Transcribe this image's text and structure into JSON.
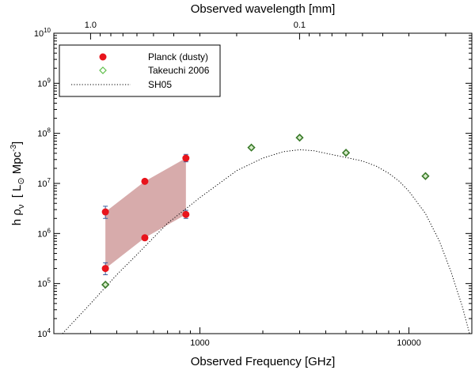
{
  "chart_data": {
    "type": "scatter",
    "xlabel": "Observed Frequency [GHz]",
    "x2label": "Observed wavelength [mm]",
    "ylabel_prefix": "h ρ",
    "ylabel_sub": "ν",
    "ylabel_units_open": "[ L",
    "ylabel_units_sun": "⊙",
    "ylabel_units_mid": " Mpc",
    "ylabel_units_exp": "-3",
    "ylabel_units_close": "]",
    "xscale": "log",
    "yscale": "log",
    "xlim": [
      200,
      20000
    ],
    "ylim": [
      10000,
      10000000000
    ],
    "x_ticks": [
      {
        "value": 1000,
        "label": "1000"
      },
      {
        "value": 10000,
        "label": "10000"
      }
    ],
    "x2_ticks": [
      {
        "value": 1.0,
        "label": "1.0"
      },
      {
        "value": 0.1,
        "label": "0.1"
      }
    ],
    "y_ticks": [
      {
        "value": 10000,
        "base": "10",
        "exp": "4"
      },
      {
        "value": 100000,
        "base": "10",
        "exp": "5"
      },
      {
        "value": 1000000,
        "base": "10",
        "exp": "6"
      },
      {
        "value": 10000000,
        "base": "10",
        "exp": "7"
      },
      {
        "value": 100000000,
        "base": "10",
        "exp": "8"
      },
      {
        "value": 1000000000,
        "base": "10",
        "exp": "9"
      },
      {
        "value": 10000000000,
        "base": "10",
        "exp": "10"
      }
    ],
    "legend": {
      "position": "top-left",
      "entries": [
        {
          "label": "Planck (dusty)",
          "marker": "filled-circle",
          "color": "#e8141c"
        },
        {
          "label": "Takeuchi 2006",
          "marker": "open-diamond",
          "color": "#5fbf4a"
        },
        {
          "label": "SH05",
          "marker": "dotted-line",
          "color": "#000000"
        }
      ]
    },
    "series": [
      {
        "name": "Planck (dusty)",
        "color": "#e8141c",
        "upper": [
          {
            "x": 353,
            "y": 2700000,
            "err_lo": 2000000,
            "err_hi": 3500000
          },
          {
            "x": 545,
            "y": 11000000,
            "err_lo": 10000000,
            "err_hi": 12000000
          },
          {
            "x": 857,
            "y": 32000000,
            "err_lo": 27000000,
            "err_hi": 38000000
          }
        ],
        "lower": [
          {
            "x": 353,
            "y": 200000,
            "err_lo": 150000,
            "err_hi": 260000
          },
          {
            "x": 545,
            "y": 820000,
            "err_lo": 740000,
            "err_hi": 900000
          },
          {
            "x": 857,
            "y": 2400000,
            "err_lo": 2000000,
            "err_hi": 2900000
          }
        ],
        "band_color": "#c98f8f"
      },
      {
        "name": "Takeuchi 2006",
        "color": "#3a7a2a",
        "points": [
          {
            "x": 353,
            "y": 95000
          },
          {
            "x": 1763,
            "y": 52000000
          },
          {
            "x": 3000,
            "y": 82000000
          },
          {
            "x": 5000,
            "y": 41000000
          },
          {
            "x": 12000,
            "y": 14000000
          }
        ]
      },
      {
        "name": "SH05",
        "color": "#000000",
        "style": "dotted",
        "points": [
          {
            "x": 220,
            "y": 10000
          },
          {
            "x": 300,
            "y": 40000
          },
          {
            "x": 400,
            "y": 150000
          },
          {
            "x": 500,
            "y": 380000
          },
          {
            "x": 700,
            "y": 1600000
          },
          {
            "x": 1000,
            "y": 5200000
          },
          {
            "x": 1500,
            "y": 18000000
          },
          {
            "x": 2000,
            "y": 32000000
          },
          {
            "x": 2500,
            "y": 43000000
          },
          {
            "x": 3000,
            "y": 47000000
          },
          {
            "x": 3500,
            "y": 45000000
          },
          {
            "x": 4000,
            "y": 40000000
          },
          {
            "x": 5000,
            "y": 33000000
          },
          {
            "x": 6000,
            "y": 28000000
          },
          {
            "x": 7000,
            "y": 22000000
          },
          {
            "x": 8000,
            "y": 16000000
          },
          {
            "x": 9000,
            "y": 11000000
          },
          {
            "x": 10000,
            "y": 7000000
          },
          {
            "x": 12000,
            "y": 2500000
          },
          {
            "x": 14000,
            "y": 700000
          },
          {
            "x": 16000,
            "y": 160000
          },
          {
            "x": 18000,
            "y": 35000
          },
          {
            "x": 19500,
            "y": 10000
          }
        ]
      }
    ]
  }
}
